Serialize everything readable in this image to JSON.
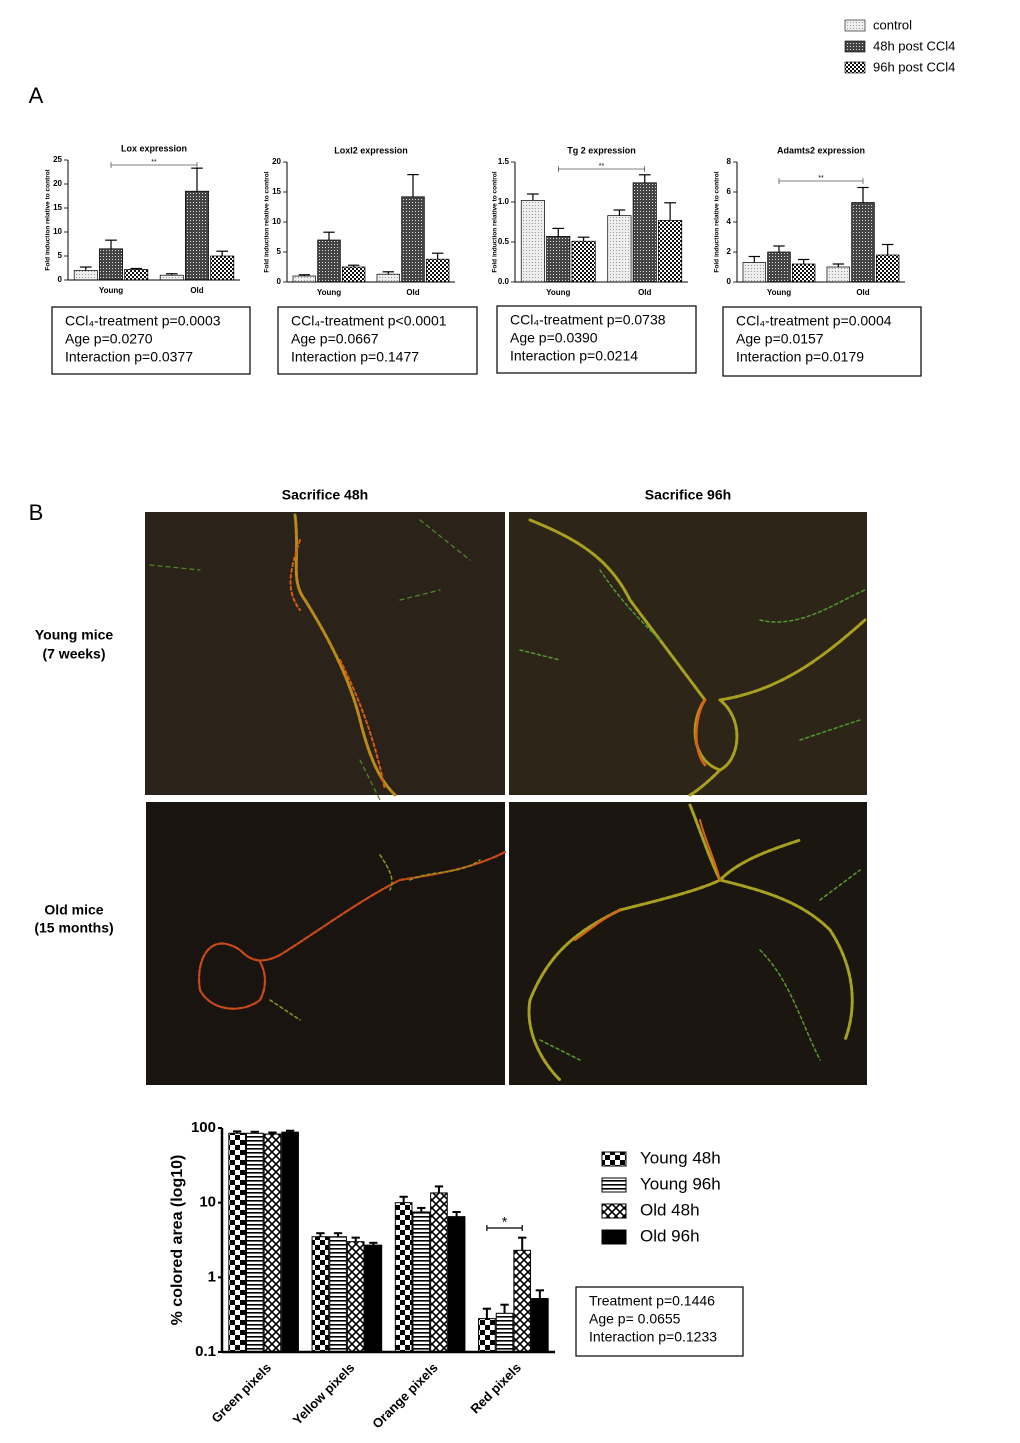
{
  "legend": {
    "entries": [
      {
        "name": "control",
        "pattern": "dots"
      },
      {
        "name": "48h post CCl4",
        "pattern": "crosshatch"
      },
      {
        "name": "96h post CCl4",
        "pattern": "checker"
      }
    ]
  },
  "panel_labels": [
    "A",
    "B"
  ],
  "chart_data": [
    {
      "type": "bar",
      "title": "Lox expression",
      "y_label": "Fold induction relative to control",
      "categories": [
        "Young",
        "Old"
      ],
      "series": [
        {
          "pattern": "dots",
          "values": [
            2.0,
            1.0
          ],
          "errors": [
            0.7,
            0.3
          ]
        },
        {
          "pattern": "crosshatch",
          "values": [
            6.5,
            18.5
          ],
          "errors": [
            1.8,
            4.8
          ]
        },
        {
          "pattern": "checker",
          "values": [
            2.2,
            5.0
          ],
          "errors": [
            0.2,
            1.0
          ]
        }
      ],
      "ylim": [
        0,
        25
      ],
      "yticks": [
        0,
        5,
        10,
        15,
        20,
        25
      ],
      "annotation": "**",
      "stats": [
        "CCl₄-treatment p=0.0003",
        "Age p=0.0270",
        "Interaction p=0.0377"
      ]
    },
    {
      "type": "bar",
      "title": "Loxl2 expression",
      "y_label": "Fold induction relative to control",
      "categories": [
        "Young",
        "Old"
      ],
      "series": [
        {
          "pattern": "dots",
          "values": [
            1.0,
            1.3
          ],
          "errors": [
            0.2,
            0.4
          ]
        },
        {
          "pattern": "crosshatch",
          "values": [
            7.0,
            14.2
          ],
          "errors": [
            1.3,
            3.7
          ]
        },
        {
          "pattern": "checker",
          "values": [
            2.5,
            3.8
          ],
          "errors": [
            0.3,
            1.0
          ]
        }
      ],
      "ylim": [
        0,
        20
      ],
      "yticks": [
        0,
        5,
        10,
        15,
        20
      ],
      "stats": [
        "CCl₄-treatment p<0.0001",
        "Age p=0.0667",
        "Interaction p=0.1477"
      ]
    },
    {
      "type": "bar",
      "title": "Tg 2 expression",
      "y_label": "Fold induction relative to control",
      "categories": [
        "Young",
        "Old"
      ],
      "series": [
        {
          "pattern": "dots",
          "values": [
            1.02,
            0.83
          ],
          "errors": [
            0.08,
            0.07
          ]
        },
        {
          "pattern": "crosshatch",
          "values": [
            0.57,
            1.24
          ],
          "errors": [
            0.1,
            0.1
          ]
        },
        {
          "pattern": "checker",
          "values": [
            0.51,
            0.77
          ],
          "errors": [
            0.05,
            0.22
          ]
        }
      ],
      "ylim": [
        0,
        1.5
      ],
      "yticks": [
        {
          "value": 0,
          "label": "0.0"
        },
        0.5,
        {
          "value": 1,
          "label": "1.0"
        },
        1.5
      ],
      "annotation": "**",
      "stats": [
        "CCl₄-treatment p=0.0738",
        "Age p=0.0390",
        "Interaction p=0.0214"
      ]
    },
    {
      "type": "bar",
      "title": "Adamts2 expression",
      "y_label": "Fold induction relative to control",
      "categories": [
        "Young",
        "Old"
      ],
      "series": [
        {
          "pattern": "dots",
          "values": [
            1.3,
            1.0
          ],
          "errors": [
            0.4,
            0.2
          ]
        },
        {
          "pattern": "crosshatch",
          "values": [
            2.0,
            5.3
          ],
          "errors": [
            0.4,
            1.0
          ]
        },
        {
          "pattern": "checker",
          "values": [
            1.2,
            1.8
          ],
          "errors": [
            0.3,
            0.7
          ]
        }
      ],
      "ylim": [
        0,
        8
      ],
      "yticks": [
        0,
        2,
        4,
        6,
        8
      ],
      "annotation": "**",
      "stats": [
        "CCl₄-treatment p=0.0004",
        "Age p=0.0157",
        "Interaction p=0.0179"
      ]
    },
    {
      "type": "bar",
      "y_label": "% colored area (log10)",
      "log_scale": true,
      "categories": [
        "Green pixels",
        "Yellow pixels",
        "Orange pixels",
        "Red pixels"
      ],
      "series": [
        {
          "name": "Young 48h",
          "pattern": "bigchecker",
          "values": [
            85,
            3.5,
            10,
            0.28
          ],
          "errors": [
            5,
            0.4,
            2,
            0.1
          ]
        },
        {
          "name": "Young 96h",
          "pattern": "hlines",
          "values": [
            85,
            3.5,
            7.5,
            0.33
          ],
          "errors": [
            4,
            0.4,
            1,
            0.1
          ]
        },
        {
          "name": "Old 48h",
          "pattern": "xhatch",
          "values": [
            83,
            3.0,
            13.5,
            2.3
          ],
          "errors": [
            4,
            0.4,
            3,
            1.1
          ]
        },
        {
          "name": "Old 96h",
          "pattern": "solid",
          "values": [
            88,
            2.7,
            6.5,
            0.52
          ],
          "errors": [
            4,
            0.2,
            1,
            0.15
          ]
        }
      ],
      "ylim": [
        0.1,
        100
      ],
      "yticks": [
        0.1,
        1,
        10,
        100
      ],
      "annotation": "*",
      "legend_position": "right",
      "stats": [
        "Treatment p=0.1446",
        "Age p= 0.0655",
        "Interaction p=0.1233"
      ]
    }
  ],
  "micrographs": {
    "columns": [
      "Sacrifice 48h",
      "Sacrifice 96h"
    ],
    "rows": [
      [
        "Young mice",
        "(7 weeks)"
      ],
      [
        "Old mice",
        "(15 months)"
      ]
    ]
  }
}
